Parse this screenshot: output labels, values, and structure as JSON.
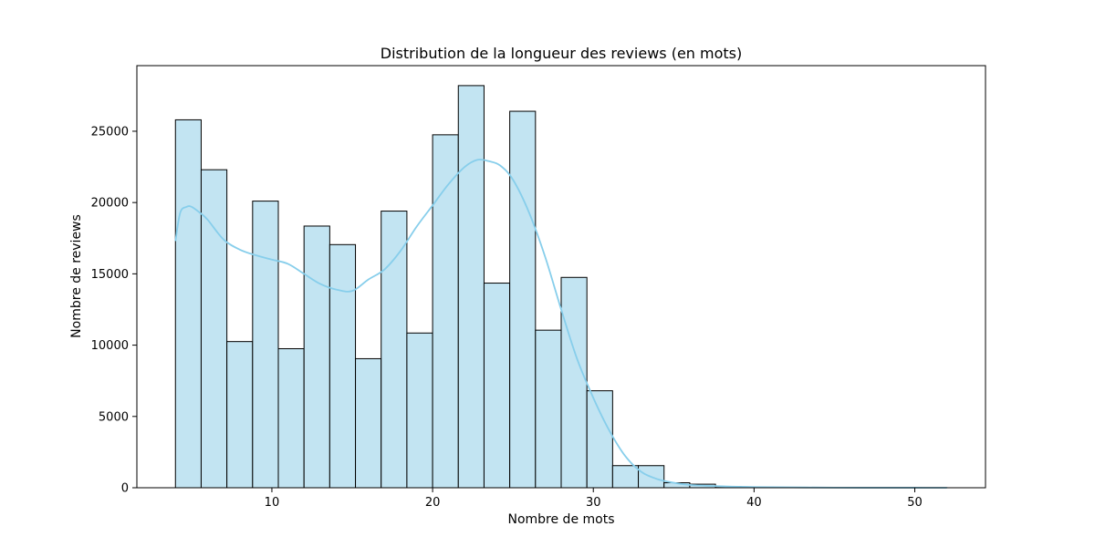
{
  "chart_data": {
    "type": "bar",
    "title": "Distribution de la longueur des reviews (en mots)",
    "xlabel": "Nombre de mots",
    "ylabel": "Nombre de reviews",
    "xlim": [
      1.6,
      54.4
    ],
    "ylim": [
      0,
      29600
    ],
    "xticks": [
      10,
      20,
      30,
      40,
      50
    ],
    "yticks": [
      0,
      5000,
      10000,
      15000,
      20000,
      25000
    ],
    "bar_color": "#c2e4f2",
    "bar_edge_color": "#000000",
    "kde_color": "#87ceeb",
    "grid": false,
    "bins": [
      {
        "x0": 4.0,
        "x1": 5.6,
        "value": 25800
      },
      {
        "x0": 5.6,
        "x1": 7.2,
        "value": 22300
      },
      {
        "x0": 7.2,
        "x1": 8.8,
        "value": 10250
      },
      {
        "x0": 8.8,
        "x1": 10.4,
        "value": 20100
      },
      {
        "x0": 10.4,
        "x1": 12.0,
        "value": 9750
      },
      {
        "x0": 12.0,
        "x1": 13.6,
        "value": 18350
      },
      {
        "x0": 13.6,
        "x1": 15.2,
        "value": 17050
      },
      {
        "x0": 15.2,
        "x1": 16.8,
        "value": 9050
      },
      {
        "x0": 16.8,
        "x1": 18.4,
        "value": 19400
      },
      {
        "x0": 18.4,
        "x1": 20.0,
        "value": 10850
      },
      {
        "x0": 20.0,
        "x1": 21.6,
        "value": 24750
      },
      {
        "x0": 21.6,
        "x1": 23.2,
        "value": 28200
      },
      {
        "x0": 23.2,
        "x1": 24.8,
        "value": 14350
      },
      {
        "x0": 24.8,
        "x1": 26.4,
        "value": 26400
      },
      {
        "x0": 26.4,
        "x1": 28.0,
        "value": 11050
      },
      {
        "x0": 28.0,
        "x1": 29.6,
        "value": 14750
      },
      {
        "x0": 29.6,
        "x1": 31.2,
        "value": 6800
      },
      {
        "x0": 31.2,
        "x1": 32.8,
        "value": 1550
      },
      {
        "x0": 32.8,
        "x1": 34.4,
        "value": 1550
      },
      {
        "x0": 34.4,
        "x1": 36.0,
        "value": 350
      },
      {
        "x0": 36.0,
        "x1": 37.6,
        "value": 250
      },
      {
        "x0": 37.6,
        "x1": 39.2,
        "value": 80
      },
      {
        "x0": 39.2,
        "x1": 40.8,
        "value": 40
      },
      {
        "x0": 40.8,
        "x1": 42.4,
        "value": 20
      },
      {
        "x0": 42.4,
        "x1": 44.0,
        "value": 10
      },
      {
        "x0": 44.0,
        "x1": 45.6,
        "value": 5
      },
      {
        "x0": 45.6,
        "x1": 47.2,
        "value": 5
      },
      {
        "x0": 47.2,
        "x1": 48.8,
        "value": 5
      },
      {
        "x0": 48.8,
        "x1": 50.4,
        "value": 5
      },
      {
        "x0": 50.4,
        "x1": 52.0,
        "value": 5
      }
    ],
    "kde": {
      "x": [
        4.0,
        4.3,
        4.7,
        5.0,
        5.5,
        6.0,
        7.0,
        8.0,
        9.0,
        10.0,
        11.0,
        12.0,
        13.0,
        14.0,
        15.0,
        16.0,
        17.0,
        18.0,
        19.0,
        20.0,
        21.0,
        22.0,
        22.8,
        23.5,
        24.2,
        25.0,
        26.0,
        27.0,
        28.0,
        29.0,
        30.0,
        31.0,
        32.0,
        33.0,
        34.0,
        35.0,
        36.0,
        38.0,
        40.0,
        45.0,
        50.0,
        52.0
      ],
      "y": [
        17300,
        19300,
        19700,
        19700,
        19300,
        18800,
        17400,
        16700,
        16300,
        16000,
        15700,
        15000,
        14300,
        13900,
        13800,
        14600,
        15300,
        16600,
        18300,
        19800,
        21300,
        22500,
        23000,
        22900,
        22600,
        21600,
        19300,
        16200,
        12500,
        9000,
        6300,
        4000,
        2200,
        1100,
        600,
        350,
        200,
        100,
        50,
        10,
        3,
        0
      ]
    }
  }
}
